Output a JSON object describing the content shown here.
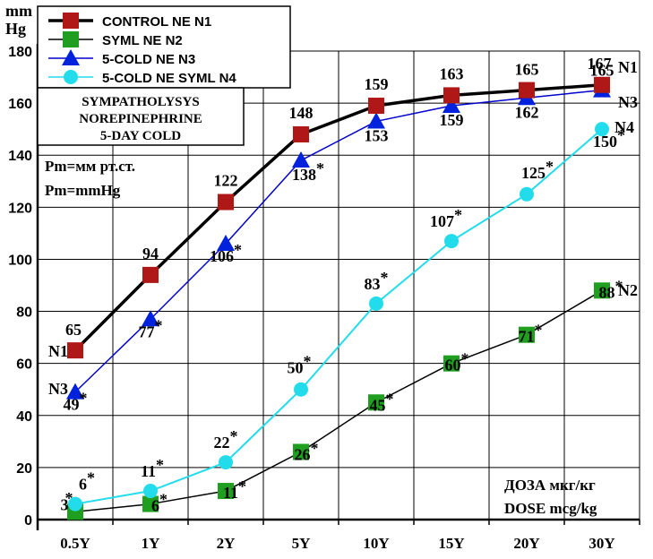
{
  "chart_data": {
    "type": "line",
    "categories": [
      "0.5Y",
      "1Y",
      "2Y",
      "5Y",
      "10Y",
      "15Y",
      "20Y",
      "30Y"
    ],
    "series": [
      {
        "name": "CONTROL NE N1",
        "end_label": "N1",
        "start_label": "N1",
        "values": [
          65,
          94,
          122,
          148,
          159,
          163,
          165,
          167
        ],
        "labels": [
          "65",
          "94",
          "122",
          "148",
          "159",
          "163",
          "165",
          "167"
        ],
        "color": "#000000",
        "marker": "square",
        "marker_color": "#b01818"
      },
      {
        "name": "SYML NE N2",
        "end_label": "N2",
        "start_label": "",
        "values": [
          3,
          6,
          11,
          26,
          45,
          60,
          71,
          88
        ],
        "labels": [
          "3",
          "6*",
          "11*",
          "26*",
          "45*",
          "60*",
          "71*",
          "88*"
        ],
        "color": "#000000",
        "marker": "square",
        "marker_color": "#1f9e1f"
      },
      {
        "name": "5-COLD NE N3",
        "end_label": "N3",
        "start_label": "N3",
        "values": [
          49,
          77,
          106,
          138,
          153,
          159,
          162,
          165
        ],
        "labels": [
          "49*",
          "77*",
          "106*",
          "138*",
          "153",
          "159",
          "162",
          "165"
        ],
        "color": "#0000cc",
        "marker": "triangle",
        "marker_color": "#0022dd"
      },
      {
        "name": "5-COLD NE SYML N4",
        "end_label": "N4",
        "start_label": "",
        "values": [
          6,
          11,
          22,
          50,
          83,
          107,
          125,
          150
        ],
        "labels": [
          "6*",
          "11*",
          "22*",
          "50*",
          "83*",
          "107*",
          "125*",
          "150*"
        ],
        "color": "#22dcec",
        "marker": "circle",
        "marker_color": "#22dcec"
      }
    ],
    "ylim": [
      0,
      180
    ],
    "yticks": [
      0,
      20,
      40,
      60,
      80,
      100,
      120,
      140,
      160,
      180
    ],
    "ylabel": "mm Hg",
    "grid": true,
    "legend_position": "top-left",
    "extra_star": "*",
    "notes": {
      "box_lines": [
        "SYMPATHOLYSYS",
        "NOREPINEPHRINE",
        "5-DAY COLD"
      ],
      "pm_lines": [
        "Pm=мм рт.ст.",
        "Pm=mmHg"
      ],
      "dose_lines": [
        "ДОЗА мкг/кг",
        "DOSE mcg/kg"
      ]
    }
  }
}
